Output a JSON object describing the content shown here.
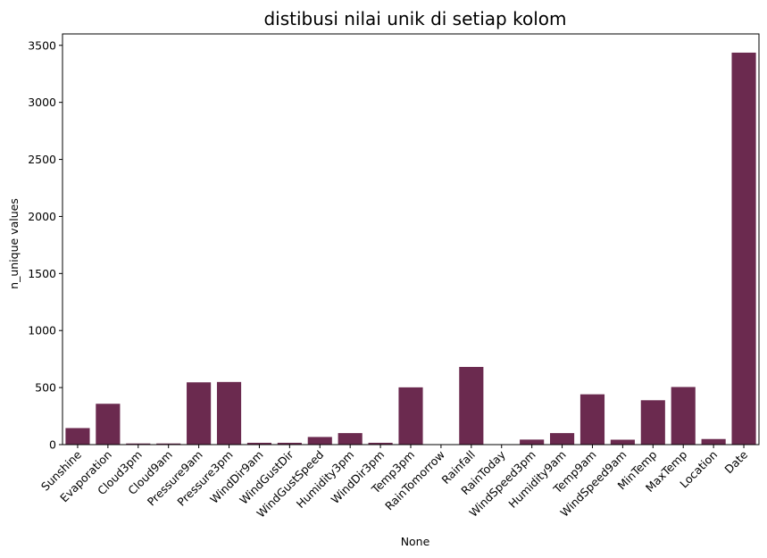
{
  "chart_data": {
    "type": "bar",
    "title": "distibusi nilai unik di setiap kolom",
    "xlabel": "None",
    "ylabel": "n_unique values",
    "ylim": [
      0,
      3600
    ],
    "yticks": [
      0,
      500,
      1000,
      1500,
      2000,
      2500,
      3000,
      3500
    ],
    "grid": false,
    "bar_color": "#6b2a4f",
    "categories": [
      "Sunshine",
      "Evaporation",
      "Cloud3pm",
      "Cloud9am",
      "Pressure9am",
      "Pressure3pm",
      "WindDir9am",
      "WindGustDir",
      "WindGustSpeed",
      "Humidity3pm",
      "WindDir3pm",
      "Temp3pm",
      "RainTomorrow",
      "Rainfall",
      "RainToday",
      "WindSpeed3pm",
      "Humidity9am",
      "Temp9am",
      "WindSpeed9am",
      "MinTemp",
      "MaxTemp",
      "Location",
      "Date"
    ],
    "values": [
      145,
      358,
      10,
      10,
      546,
      549,
      16,
      16,
      67,
      101,
      16,
      502,
      2,
      681,
      2,
      44,
      101,
      441,
      43,
      389,
      505,
      49,
      3436
    ]
  }
}
